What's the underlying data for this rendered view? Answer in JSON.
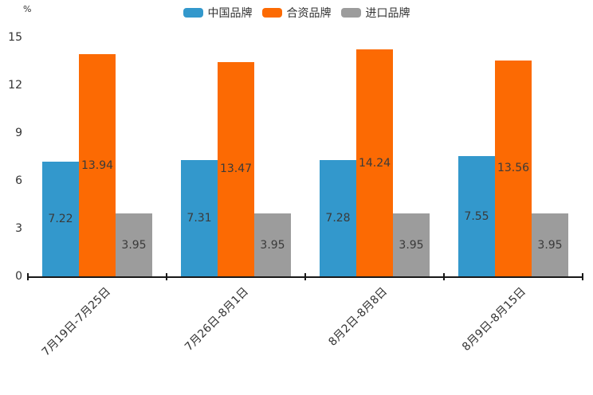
{
  "chart_data": {
    "type": "bar",
    "title": "",
    "categories": [
      "7月19日-7月25日",
      "7月26日-8月1日",
      "8月2日-8月8日",
      "8月9日-8月15日"
    ],
    "series": [
      {
        "name": "中国品牌",
        "color": "#3398CC",
        "values": [
          7.22,
          7.31,
          7.28,
          7.55
        ]
      },
      {
        "name": "合资品牌",
        "color": "#FC6A03",
        "values": [
          13.94,
          13.47,
          14.24,
          13.56
        ]
      },
      {
        "name": "进口品牌",
        "color": "#9C9C9C",
        "values": [
          3.95,
          3.95,
          3.95,
          3.95
        ]
      }
    ],
    "xlabel": "",
    "ylabel": "%",
    "ylim": [
      0,
      15
    ],
    "yticks": [
      0,
      3,
      6,
      9,
      12,
      15
    ],
    "legend_position": "top",
    "grid": false,
    "bar_labels_visible": true,
    "colors": {
      "axis": "#181818",
      "tick_text": "#333333",
      "bar_label_text": "#3a3a3a",
      "background": "#ffffff"
    }
  }
}
